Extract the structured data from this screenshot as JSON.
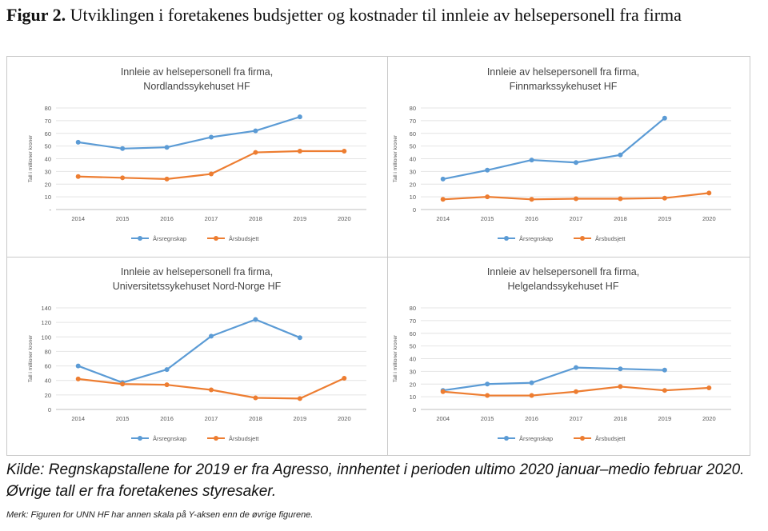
{
  "caption": {
    "label": "Figur 2.",
    "text": " Utviklingen i foretakenes budsjetter og kostnader til innleie av helsepersonell fra firma"
  },
  "source_note": "Kilde: Regnskapstallene for 2019 er fra Agresso, innhentet i perioden ultimo 2020 januar–medio februar 2020. Øvrige tall er fra foretakenes styresaker.",
  "remark": "Merk: Figuren for UNN HF har annen skala på Y-aksen enn de øvrige figurene.",
  "colors": {
    "regnskap": "#5B9BD5",
    "budsjett": "#ED7D31"
  },
  "chart_data": [
    {
      "type": "line",
      "title_line1": "Innleie av helsepersonell fra firma,",
      "title_line2": "Nordlandssykehuset HF",
      "ylabel": "Tall i millioner kroner",
      "xlabel": "",
      "categories": [
        "2014",
        "2015",
        "2016",
        "2017",
        "2018",
        "2019",
        "2020"
      ],
      "ylim": [
        0,
        80
      ],
      "yticks": [
        "-",
        "10",
        "20",
        "30",
        "40",
        "50",
        "60",
        "70",
        "80"
      ],
      "series": [
        {
          "name": "Årsregnskap",
          "values": [
            53,
            48,
            49,
            57,
            62,
            73,
            null
          ]
        },
        {
          "name": "Årsbudsjett",
          "values": [
            26,
            25,
            24,
            28,
            45,
            46,
            46
          ]
        }
      ]
    },
    {
      "type": "line",
      "title_line1": "Innleie av helsepersonell  fra firma,",
      "title_line2": "Finnmarkssykehuset  HF",
      "ylabel": "Tall i millioner kroner",
      "xlabel": "",
      "categories": [
        "2014",
        "2015",
        "2016",
        "2017",
        "2018",
        "2019",
        "2020"
      ],
      "ylim": [
        0,
        80
      ],
      "yticks": [
        "0",
        "10",
        "20",
        "30",
        "40",
        "50",
        "60",
        "70",
        "80"
      ],
      "series": [
        {
          "name": "Årsregnskap",
          "values": [
            24,
            31,
            39,
            37,
            43,
            72,
            null
          ]
        },
        {
          "name": "Årsbudsjett",
          "values": [
            8,
            10,
            8,
            8.5,
            8.5,
            9,
            13
          ]
        }
      ]
    },
    {
      "type": "line",
      "title_line1": "Innleie av helsepersonell fra firma,",
      "title_line2": "Universitetssykehuset Nord-Norge HF",
      "ylabel": "Tall i millioner kroner",
      "xlabel": "",
      "categories": [
        "2014",
        "2015",
        "2016",
        "2017",
        "2018",
        "2019",
        "2020"
      ],
      "ylim": [
        0,
        140
      ],
      "yticks": [
        "0",
        "20",
        "40",
        "60",
        "80",
        "100",
        "120",
        "140"
      ],
      "series": [
        {
          "name": "Årsregnskap",
          "values": [
            60,
            37,
            55,
            101,
            124,
            99,
            null
          ]
        },
        {
          "name": "Årsbudsjett",
          "values": [
            42,
            35,
            34,
            27,
            16,
            15,
            43
          ]
        }
      ]
    },
    {
      "type": "line",
      "title_line1": "Innleie av helsepersonell  fra firma,",
      "title_line2": "Helgelandssykehuset  HF",
      "ylabel": "Tall i millioner kroner",
      "xlabel": "",
      "categories": [
        "2004",
        "2015",
        "2016",
        "2017",
        "2018",
        "2019",
        "2020"
      ],
      "ylim": [
        0,
        80
      ],
      "yticks": [
        "0",
        "10",
        "20",
        "30",
        "40",
        "50",
        "60",
        "70",
        "80"
      ],
      "series": [
        {
          "name": "Årsregnskap",
          "values": [
            15,
            20,
            21,
            33,
            32,
            31,
            null
          ]
        },
        {
          "name": "Årsbudsjett",
          "values": [
            14,
            11,
            11,
            14,
            18,
            15,
            17
          ]
        }
      ]
    }
  ]
}
